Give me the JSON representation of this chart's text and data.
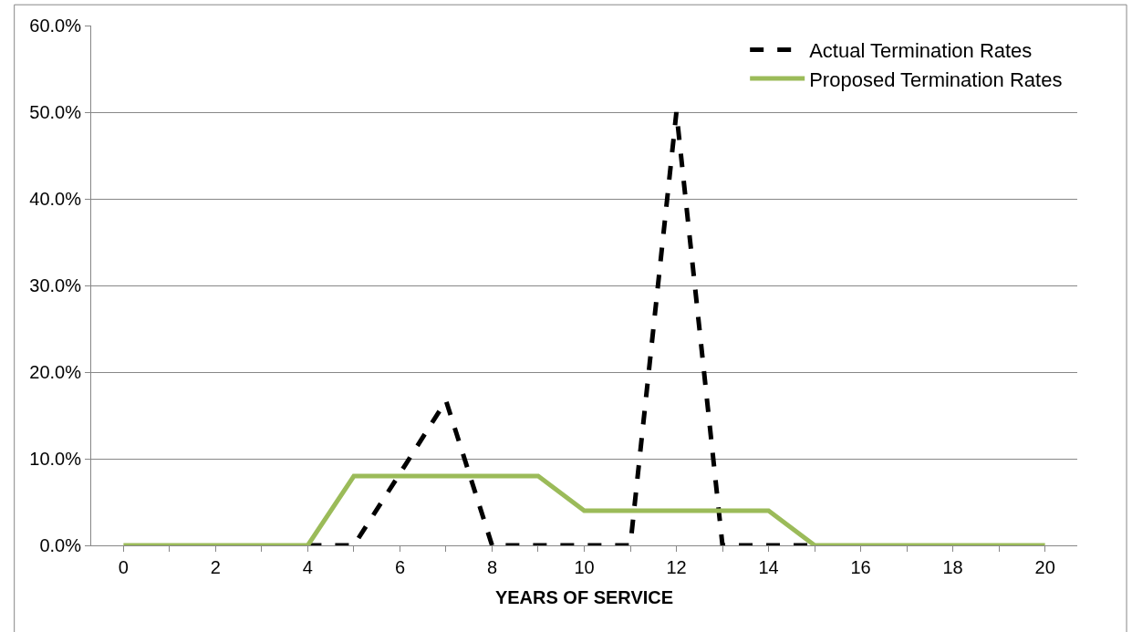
{
  "chart_data": {
    "type": "line",
    "xlabel": "YEARS OF SERVICE",
    "series": [
      {
        "name": "Actual Termination Rates",
        "color": "#000000",
        "line_style": "dashed",
        "x": [
          4,
          5,
          6,
          7,
          8,
          9,
          10,
          11,
          12,
          13,
          14,
          15
        ],
        "values": [
          0,
          0,
          8.3,
          16.7,
          0,
          0,
          0,
          0,
          50,
          0,
          0,
          0
        ]
      },
      {
        "name": "Proposed Termination Rates",
        "color": "#9bbb59",
        "line_style": "solid",
        "x": [
          0,
          1,
          2,
          3,
          4,
          5,
          6,
          7,
          8,
          9,
          10,
          11,
          12,
          13,
          14,
          15,
          16,
          17,
          18,
          19,
          20
        ],
        "values": [
          0,
          0,
          0,
          0,
          0,
          8,
          8,
          8,
          8,
          8,
          4,
          4,
          4,
          4,
          4,
          0,
          0,
          0,
          0,
          0,
          0
        ]
      }
    ],
    "xlim": [
      -0.7,
      20.7
    ],
    "xticks": [
      0,
      {
        "value": 1,
        "label": null
      },
      2,
      {
        "value": 3,
        "label": null
      },
      4,
      {
        "value": 5,
        "label": null
      },
      6,
      {
        "value": 7,
        "label": null
      },
      8,
      {
        "value": 9,
        "label": null
      },
      10,
      {
        "value": 11,
        "label": null
      },
      12,
      {
        "value": 13,
        "label": null
      },
      14,
      {
        "value": 15,
        "label": null
      },
      16,
      {
        "value": 17,
        "label": null
      },
      18,
      {
        "value": 19,
        "label": null
      },
      20
    ],
    "ylim": [
      0,
      60
    ],
    "yticks": [
      {
        "value": 0,
        "label": "0.0%"
      },
      {
        "value": 10,
        "label": "10.0%"
      },
      {
        "value": 20,
        "label": "20.0%"
      },
      {
        "value": 30,
        "label": "30.0%"
      },
      {
        "value": 40,
        "label": "40.0%"
      },
      {
        "value": 50,
        "label": "50.0%"
      },
      {
        "value": 60,
        "label": "60.0%"
      }
    ],
    "grid": "y",
    "legend": "top right",
    "marker": "none"
  }
}
